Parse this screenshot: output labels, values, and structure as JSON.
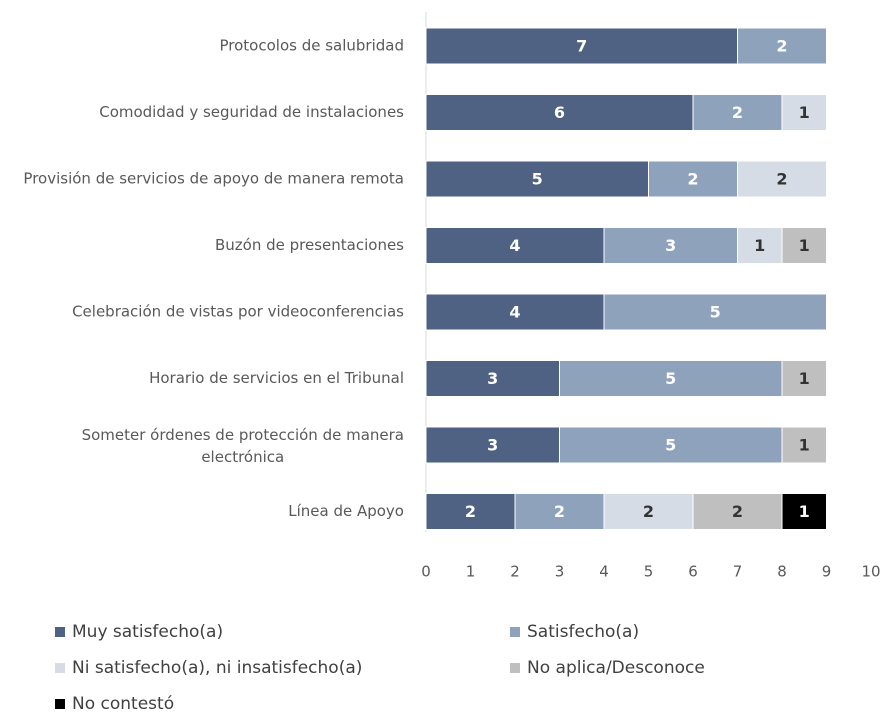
{
  "chart_data": {
    "type": "stacked-bar-horizontal",
    "categories": [
      "Protocolos de salubridad",
      "Comodidad y seguridad de instalaciones",
      "Provisión de servicios de apoyo de manera remota",
      "Buzón de presentaciones",
      "Celebración de vistas por videoconferencias",
      "Horario de servicios en el Tribunal",
      "Someter órdenes de protección de manera electrónica",
      "Línea de Apoyo"
    ],
    "series": [
      {
        "name": "Muy satisfecho(a)",
        "color": "#4f6283",
        "label_color": "#ffffff",
        "values": [
          7,
          6,
          5,
          4,
          4,
          3,
          3,
          2
        ]
      },
      {
        "name": "Satisfecho(a)",
        "color": "#8fa2bb",
        "label_color": "#ffffff",
        "values": [
          2,
          2,
          2,
          3,
          5,
          5,
          5,
          2
        ]
      },
      {
        "name": "Ni satisfecho(a), ni insatisfecho(a)",
        "color": "#d6dce6",
        "label_color": "#333333",
        "values": [
          null,
          1,
          2,
          1,
          null,
          null,
          null,
          2
        ]
      },
      {
        "name": "No aplica/Desconoce",
        "color": "#bfbfbf",
        "label_color": "#333333",
        "values": [
          null,
          null,
          null,
          1,
          null,
          1,
          1,
          2
        ]
      },
      {
        "name": "No contestó",
        "color": "#000000",
        "label_color": "#ffffff",
        "values": [
          null,
          null,
          null,
          null,
          null,
          null,
          null,
          1
        ]
      }
    ],
    "xlim": [
      0,
      10
    ],
    "xticks": [
      0,
      1,
      2,
      3,
      4,
      5,
      6,
      7,
      8,
      9,
      10
    ],
    "legend": "bottom"
  }
}
